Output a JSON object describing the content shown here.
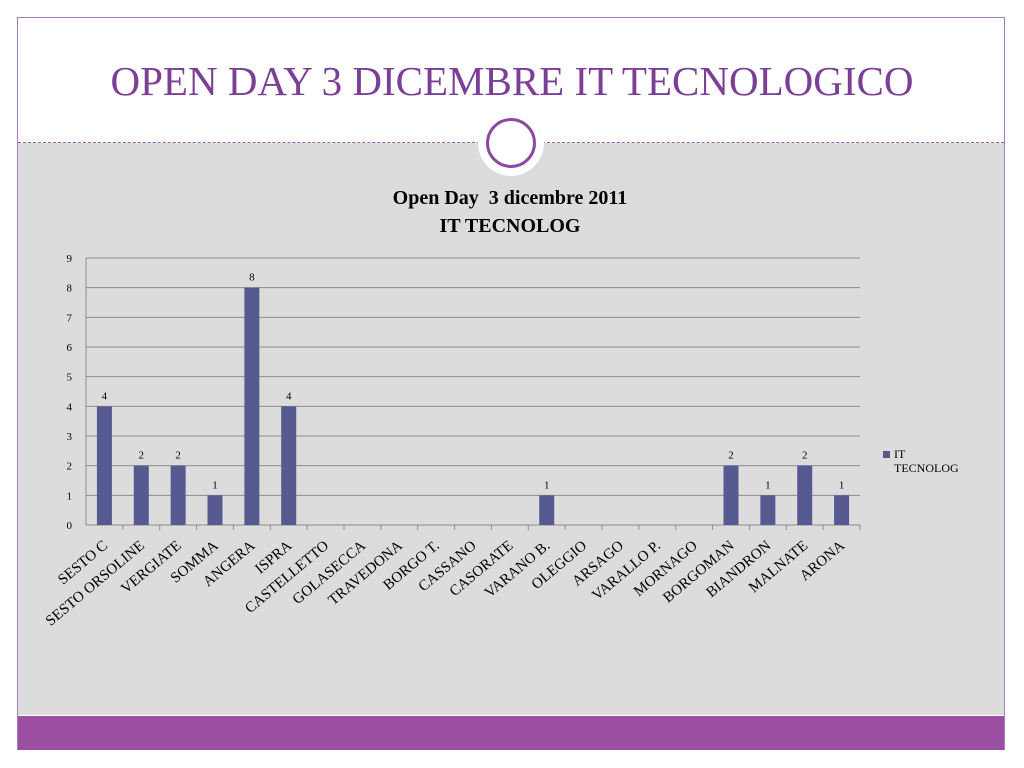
{
  "slide": {
    "title": "OPEN DAY 3 DICEMBRE IT TECNOLOGICO"
  },
  "colors": {
    "accent": "#7b3f97",
    "bar": "#575a91",
    "footer": "#9b4fa3",
    "panel": "#dcdcdc"
  },
  "chart_data": {
    "type": "bar",
    "title": "Open Day  3 dicembre 2011",
    "subtitle": "IT TECNOLOG",
    "xlabel": "",
    "ylabel": "",
    "ylim": [
      0,
      9
    ],
    "grid": true,
    "legend_position": "right",
    "categories": [
      "SESTO C",
      "SESTO ORSOLINE",
      "VERGIATE",
      "SOMMA",
      "ANGERA",
      "ISPRA",
      "CASTELLETTO",
      "GOLASECCA",
      "TRAVEDONA",
      "BORGO T.",
      "CASSANO",
      "CASORATE",
      "VARANO B.",
      "OLEGGIO",
      "ARSAGO",
      "VARALLO P.",
      "MORNAGO",
      "BORGOMAN",
      "BIANDRON",
      "MALNATE",
      "ARONA"
    ],
    "series": [
      {
        "name": "IT TECNOLOG",
        "values": [
          4,
          2,
          2,
          1,
          8,
          4,
          null,
          null,
          null,
          null,
          null,
          null,
          1,
          null,
          null,
          null,
          null,
          2,
          1,
          2,
          1
        ]
      }
    ]
  }
}
